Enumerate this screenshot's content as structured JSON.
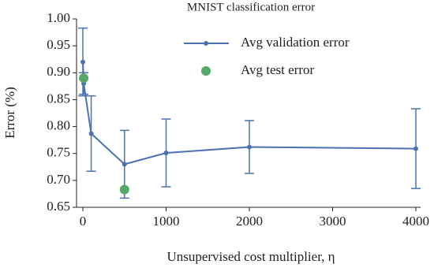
{
  "chart_data": {
    "type": "line",
    "title": "MNIST classification error",
    "xlabel": "Unsupervised cost multiplier, η",
    "ylabel": "Error (%)",
    "xlim": [
      -76,
      4000
    ],
    "ylim": [
      0.65,
      1.0
    ],
    "xticks": [
      0,
      1000,
      2000,
      3000,
      4000
    ],
    "yticks": [
      0.65,
      {
        "value": 0.7,
        "label": "0.70"
      },
      0.75,
      {
        "value": 0.8,
        "label": "0.80"
      },
      0.85,
      {
        "value": 0.9,
        "label": "0.90"
      },
      0.95,
      {
        "value": 1.0,
        "label": "1.00"
      }
    ],
    "legend": "upper right",
    "series": [
      {
        "name": "Avg validation error",
        "color": "#4c72b0",
        "type": "line",
        "x": [
          0,
          10,
          100,
          500,
          1000,
          2000,
          4000
        ],
        "values": [
          0.92,
          0.88,
          0.787,
          0.73,
          0.751,
          0.762,
          0.759
        ],
        "errors": [
          0.063,
          0.02,
          0.07,
          0.063,
          0.063,
          0.049,
          0.074
        ]
      },
      {
        "name": "Avg test error",
        "color": "#55a868",
        "type": "scatter",
        "x": [
          10,
          500
        ],
        "values": [
          0.89,
          0.683
        ]
      }
    ]
  }
}
